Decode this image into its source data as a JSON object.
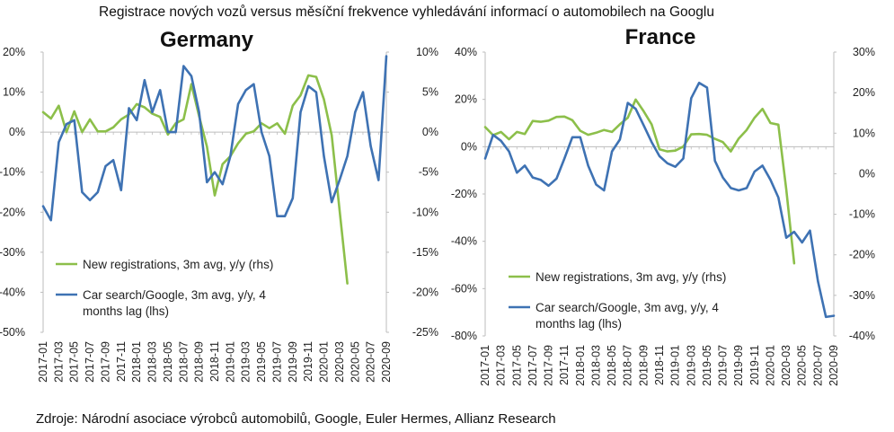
{
  "title": "Registrace nových vozů versus měsíční frekvence vyhledávání informací o automobilech na Googlu",
  "source": "Zdroje: Národní asociace výrobců automobilů, Google, Euler Hermes, Allianz Research",
  "colors": {
    "registrations": "#8cbf4a",
    "search": "#3e72b3"
  },
  "chart_data": [
    {
      "type": "line",
      "title": "Germany",
      "x": [
        "2017-01",
        "2017-02",
        "2017-03",
        "2017-04",
        "2017-05",
        "2017-06",
        "2017-07",
        "2017-08",
        "2017-09",
        "2017-10",
        "2017-11",
        "2017-12",
        "2018-01",
        "2018-02",
        "2018-03",
        "2018-04",
        "2018-05",
        "2018-06",
        "2018-07",
        "2018-08",
        "2018-09",
        "2018-10",
        "2018-11",
        "2018-12",
        "2019-01",
        "2019-02",
        "2019-03",
        "2019-04",
        "2019-05",
        "2019-06",
        "2019-07",
        "2019-08",
        "2019-09",
        "2019-10",
        "2019-11",
        "2019-12",
        "2020-01",
        "2020-02",
        "2020-03",
        "2020-04",
        "2020-05",
        "2020-06",
        "2020-07",
        "2020-08",
        "2020-09"
      ],
      "xticks": [
        "2017-01",
        "2017-03",
        "2017-05",
        "2017-07",
        "2017-09",
        "2017-11",
        "2018-01",
        "2018-03",
        "2018-05",
        "2018-07",
        "2018-09",
        "2018-11",
        "2019-01",
        "2019-03",
        "2019-05",
        "2019-07",
        "2019-09",
        "2019-11",
        "2020-01",
        "2020-03",
        "2020-05",
        "2020-07",
        "2020-09"
      ],
      "ylim_left": [
        -50,
        20
      ],
      "yticks_left": [
        "20%",
        "10%",
        "0%",
        "-10%",
        "-20%",
        "-30%",
        "-40%",
        "-50%"
      ],
      "ylim_right": [
        -25,
        10
      ],
      "yticks_right": [
        "10%",
        "5%",
        "0%",
        "-5%",
        "-10%",
        "-15%",
        "-20%",
        "-25%"
      ],
      "legend": {
        "position": "lower-left",
        "entries": [
          "New registrations, 3m avg, y/y (rhs)",
          "Car search/Google, 3m avg, y/y, 4 months lag (lhs)"
        ]
      },
      "series": [
        {
          "name": "New registrations, 3m avg, y/y (rhs)",
          "axis": "right",
          "values": [
            2.5,
            1.7,
            3.3,
            0,
            2.6,
            0,
            1.6,
            0.1,
            0.1,
            0.6,
            1.6,
            2.2,
            3.5,
            3.1,
            2.3,
            1.9,
            -0.3,
            1.1,
            1.6,
            6.0,
            2.0,
            -1.8,
            -7.9,
            -4,
            -3,
            -1.4,
            -0.2,
            0.1,
            1.1,
            0.5,
            1.1,
            -0.2,
            3.3,
            4.6,
            7.1,
            6.9,
            4.1,
            -0.4,
            -9.7,
            -18.9,
            null,
            null,
            null,
            null,
            null
          ]
        },
        {
          "name": "Car search/Google, 3m avg, y/y, 4 months lag (lhs)",
          "axis": "left",
          "values": [
            -18.5,
            -22,
            -2.5,
            2,
            3,
            -15,
            -17,
            -15,
            -8.5,
            -7,
            -14.5,
            6,
            3,
            13,
            5,
            10.5,
            0,
            0,
            16.5,
            14,
            5,
            -12.5,
            -10,
            -13,
            -6,
            7,
            10.5,
            12,
            0,
            -6,
            -21,
            -21,
            -16.5,
            5,
            11.5,
            10,
            -6,
            -17.5,
            -12,
            -6,
            5,
            10,
            -3.5,
            -12,
            19
          ]
        }
      ]
    },
    {
      "type": "line",
      "title": "France",
      "x": [
        "2017-01",
        "2017-02",
        "2017-03",
        "2017-04",
        "2017-05",
        "2017-06",
        "2017-07",
        "2017-08",
        "2017-09",
        "2017-10",
        "2017-11",
        "2017-12",
        "2018-01",
        "2018-02",
        "2018-03",
        "2018-04",
        "2018-05",
        "2018-06",
        "2018-07",
        "2018-08",
        "2018-09",
        "2018-10",
        "2018-11",
        "2018-12",
        "2019-01",
        "2019-02",
        "2019-03",
        "2019-04",
        "2019-05",
        "2019-06",
        "2019-07",
        "2019-08",
        "2019-09",
        "2019-10",
        "2019-11",
        "2019-12",
        "2020-01",
        "2020-02",
        "2020-03",
        "2020-04",
        "2020-05",
        "2020-06",
        "2020-07",
        "2020-08",
        "2020-09"
      ],
      "xticks": [
        "2017-01",
        "2017-03",
        "2017-05",
        "2017-07",
        "2017-09",
        "2017-11",
        "2018-01",
        "2018-03",
        "2018-05",
        "2018-07",
        "2018-09",
        "2018-11",
        "2019-01",
        "2019-03",
        "2019-05",
        "2019-07",
        "2019-09",
        "2019-11",
        "2020-01",
        "2020-03",
        "2020-05",
        "2020-07",
        "2020-09"
      ],
      "ylim_left": [
        -80,
        40
      ],
      "yticks_left": [
        "40%",
        "20%",
        "0%",
        "-20%",
        "-40%",
        "-60%",
        "-80%"
      ],
      "ylim_right": [
        -40,
        30
      ],
      "yticks_right": [
        "30%",
        "20%",
        "10%",
        "0%",
        "-10%",
        "-20%",
        "-30%",
        "-40%"
      ],
      "legend": {
        "position": "lower-left",
        "entries": [
          "New registrations, 3m avg, y/y (rhs)",
          "Car search/Google, 3m avg, y/y, 4 months lag (lhs)"
        ]
      },
      "series": [
        {
          "name": "New registrations, 3m avg, y/y (rhs)",
          "axis": "right",
          "values": [
            11.5,
            9.5,
            10.3,
            8.5,
            10.3,
            9.8,
            13,
            12.8,
            13.1,
            14,
            14.1,
            13.2,
            10.6,
            9.6,
            10.1,
            10.8,
            10.3,
            12.2,
            13.8,
            18.3,
            15.4,
            12.2,
            6,
            5.5,
            5.7,
            6.7,
            9.7,
            9.8,
            9.6,
            8.6,
            7.8,
            5.5,
            8.7,
            10.8,
            13.8,
            16,
            12.5,
            12.1,
            -3.9,
            -22.1,
            null,
            null,
            null,
            null,
            null
          ]
        },
        {
          "name": "Car search/Google, 3m avg, y/y, 4 months lag (lhs)",
          "axis": "left",
          "values": [
            -5,
            5,
            2.5,
            -2,
            -11,
            -8,
            -13,
            -14,
            -16.5,
            -13.5,
            -5,
            4,
            4,
            -8,
            -16,
            -18.5,
            -2,
            3,
            18.5,
            16,
            9,
            2,
            -4,
            -7,
            -8.5,
            -5,
            20.5,
            27,
            25,
            -6,
            -13,
            -17.5,
            -18.5,
            -17.5,
            -10.5,
            -8,
            -14,
            -21.5,
            -38.5,
            -36,
            -40.5,
            -35.5,
            -57,
            -72,
            -71.5
          ]
        }
      ]
    }
  ]
}
